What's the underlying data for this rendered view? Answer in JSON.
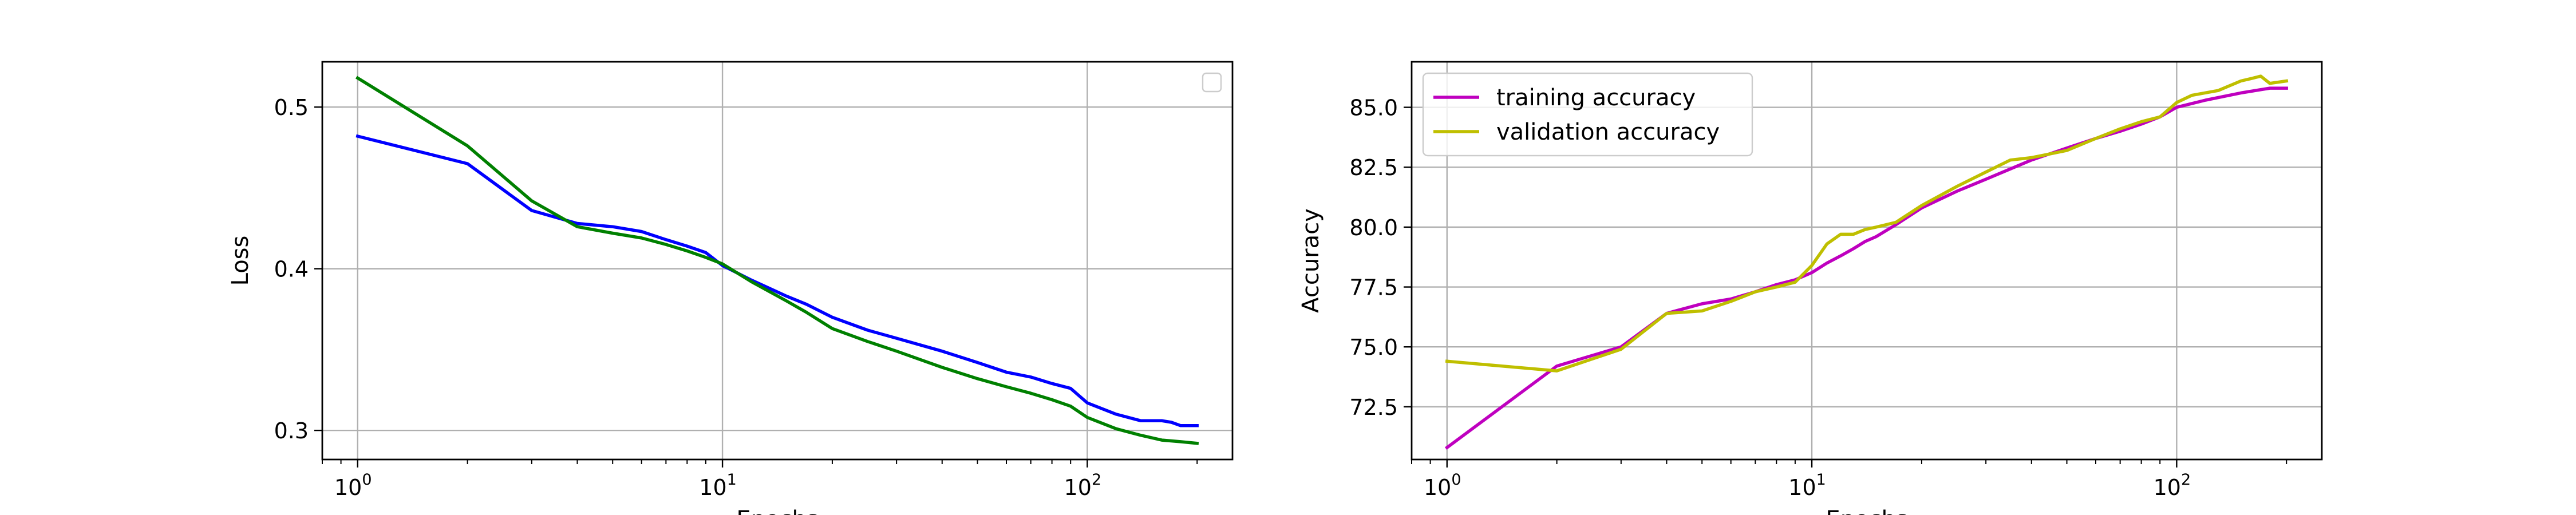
{
  "chart_data": [
    {
      "type": "line",
      "title": "",
      "xlabel": "Epochs",
      "ylabel": "Loss",
      "xscale": "log",
      "xlim": [
        0.8,
        250
      ],
      "ylim": [
        0.282,
        0.528
      ],
      "grid": true,
      "legend": {
        "placement": "top-right",
        "entries": []
      },
      "x_ticks": [
        {
          "value": 1,
          "base": "10",
          "exp": "0"
        },
        {
          "value": 10,
          "base": "10",
          "exp": "1"
        },
        {
          "value": 100,
          "base": "10",
          "exp": "2"
        }
      ],
      "y_ticks": [
        {
          "value": 0.3,
          "label": "0.3"
        },
        {
          "value": 0.4,
          "label": "0.4"
        },
        {
          "value": 0.5,
          "label": "0.5"
        }
      ],
      "series": [
        {
          "color": "#0000ff",
          "x": [
            1,
            2,
            3,
            4,
            5,
            6,
            7,
            8,
            9,
            10,
            12,
            15,
            17,
            20,
            25,
            30,
            40,
            50,
            60,
            70,
            80,
            90,
            100,
            120,
            140,
            160,
            170,
            180,
            200
          ],
          "y": [
            0.482,
            0.465,
            0.436,
            0.428,
            0.426,
            0.423,
            0.418,
            0.414,
            0.41,
            0.402,
            0.393,
            0.383,
            0.378,
            0.37,
            0.362,
            0.357,
            0.349,
            0.342,
            0.336,
            0.333,
            0.329,
            0.326,
            0.317,
            0.31,
            0.306,
            0.306,
            0.305,
            0.303,
            0.303
          ]
        },
        {
          "color": "#008000",
          "x": [
            1,
            2,
            3,
            4,
            5,
            6,
            7,
            8,
            9,
            10,
            12,
            15,
            17,
            20,
            25,
            30,
            40,
            50,
            60,
            70,
            80,
            90,
            100,
            120,
            140,
            160,
            180,
            200
          ],
          "y": [
            0.518,
            0.476,
            0.442,
            0.426,
            0.422,
            0.419,
            0.415,
            0.411,
            0.407,
            0.403,
            0.392,
            0.38,
            0.373,
            0.363,
            0.355,
            0.349,
            0.339,
            0.332,
            0.327,
            0.323,
            0.319,
            0.315,
            0.308,
            0.301,
            0.297,
            0.294,
            0.293,
            0.292
          ]
        }
      ]
    },
    {
      "type": "line",
      "title": "",
      "xlabel": "Epochs",
      "ylabel": "Accuracy",
      "xscale": "log",
      "xlim": [
        0.8,
        250
      ],
      "ylim": [
        70.3,
        86.9
      ],
      "grid": true,
      "legend": {
        "placement": "top-left"
      },
      "x_ticks": [
        {
          "value": 1,
          "base": "10",
          "exp": "0"
        },
        {
          "value": 10,
          "base": "10",
          "exp": "1"
        },
        {
          "value": 100,
          "base": "10",
          "exp": "2"
        }
      ],
      "y_ticks": [
        {
          "value": 72.5,
          "label": "72.5"
        },
        {
          "value": 75.0,
          "label": "75.0"
        },
        {
          "value": 77.5,
          "label": "77.5"
        },
        {
          "value": 80.0,
          "label": "80.0"
        },
        {
          "value": 82.5,
          "label": "82.5"
        },
        {
          "value": 85.0,
          "label": "85.0"
        }
      ],
      "series": [
        {
          "name": "training accuracy",
          "color": "#bf00bf",
          "x": [
            1,
            2,
            3,
            4,
            5,
            6,
            7,
            8,
            9,
            10,
            11,
            12,
            13,
            14,
            15,
            17,
            20,
            25,
            30,
            40,
            50,
            60,
            70,
            80,
            90,
            100,
            120,
            150,
            180,
            200
          ],
          "y": [
            70.8,
            74.2,
            75.0,
            76.4,
            76.8,
            77.0,
            77.3,
            77.6,
            77.8,
            78.1,
            78.5,
            78.8,
            79.1,
            79.4,
            79.6,
            80.1,
            80.8,
            81.5,
            82.0,
            82.8,
            83.3,
            83.7,
            84.0,
            84.3,
            84.6,
            85.0,
            85.3,
            85.6,
            85.8,
            85.8
          ]
        },
        {
          "name": "validation accuracy",
          "color": "#bfbf00",
          "x": [
            1,
            2,
            3,
            4,
            5,
            6,
            7,
            8,
            9,
            10,
            11,
            12,
            13,
            14,
            15,
            17,
            20,
            25,
            30,
            35,
            40,
            50,
            60,
            70,
            80,
            90,
            100,
            110,
            130,
            150,
            160,
            170,
            180,
            200
          ],
          "y": [
            74.4,
            74.0,
            74.9,
            76.4,
            76.5,
            76.9,
            77.3,
            77.5,
            77.7,
            78.4,
            79.3,
            79.7,
            79.7,
            79.9,
            80.0,
            80.2,
            80.9,
            81.7,
            82.3,
            82.8,
            82.9,
            83.2,
            83.7,
            84.1,
            84.4,
            84.6,
            85.2,
            85.5,
            85.7,
            86.1,
            86.2,
            86.3,
            86.0,
            86.1
          ]
        }
      ]
    }
  ]
}
